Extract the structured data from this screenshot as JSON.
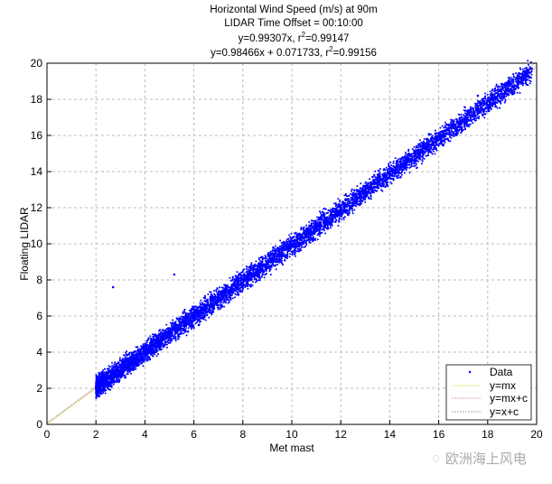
{
  "chart_data": {
    "type": "scatter",
    "title_lines": [
      "Horizontal Wind Speed (m/s) at 90m",
      "LIDAR Time Offset = 00:10:00",
      "y=0.99307x, r",
      "y=0.98466x + 0.071733, r"
    ],
    "title_r2": [
      "=0.99147",
      "=0.99156"
    ],
    "title_sup": "2",
    "xlabel": "Met mast",
    "ylabel": "Floating LIDAR",
    "xlim": [
      0,
      20
    ],
    "ylim": [
      0,
      20
    ],
    "xticks": [
      0,
      2,
      4,
      6,
      8,
      10,
      12,
      14,
      16,
      18,
      20
    ],
    "yticks": [
      0,
      2,
      4,
      6,
      8,
      10,
      12,
      14,
      16,
      18,
      20
    ],
    "grid": true,
    "legend_position": "bottom-right",
    "legend": [
      "Data",
      "y=mx",
      "y=mx+c",
      "y=x+c"
    ],
    "fits": [
      {
        "name": "y=mx",
        "m": 0.99307,
        "c": 0,
        "color": "#e8e070"
      },
      {
        "name": "y=mx+c",
        "m": 0.98466,
        "c": 0.071733,
        "color": "#f0a0a0"
      },
      {
        "name": "y=x+c",
        "m": 1,
        "c": 0.071733,
        "color": "#aaaaaa"
      }
    ],
    "data_color": "#0000ff",
    "series": [
      {
        "name": "Data",
        "x_range": [
          2,
          19.8
        ],
        "points": [
          [
            2.0,
            2.1
          ],
          [
            2.1,
            1.6
          ],
          [
            2.2,
            2.6
          ],
          [
            2.5,
            2.2
          ],
          [
            2.7,
            7.6
          ],
          [
            3,
            3.0
          ],
          [
            3.2,
            2.6
          ],
          [
            3.5,
            3.7
          ],
          [
            3.8,
            3.5
          ],
          [
            4,
            4.1
          ],
          [
            4.2,
            3.6
          ],
          [
            4.5,
            4.8
          ],
          [
            4.8,
            4.4
          ],
          [
            5,
            5.1
          ],
          [
            5.2,
            8.3
          ],
          [
            5.4,
            5.0
          ],
          [
            5.6,
            5.9
          ],
          [
            6,
            6.0
          ],
          [
            6.2,
            5.5
          ],
          [
            6.5,
            6.8
          ],
          [
            6.8,
            6.4
          ],
          [
            7,
            7.1
          ],
          [
            7.3,
            7.6
          ],
          [
            7.5,
            7.0
          ],
          [
            7.8,
            8.0
          ],
          [
            8,
            8.0
          ],
          [
            8.3,
            7.7
          ],
          [
            8.5,
            8.8
          ],
          [
            8.8,
            8.5
          ],
          [
            9,
            9.0
          ],
          [
            9.3,
            9.6
          ],
          [
            9.5,
            9.1
          ],
          [
            9.8,
            9.9
          ],
          [
            10,
            10.0
          ],
          [
            10.3,
            9.6
          ],
          [
            10.5,
            10.7
          ],
          [
            10.8,
            10.5
          ],
          [
            11,
            11.0
          ],
          [
            11.3,
            11.6
          ],
          [
            11.5,
            11.1
          ],
          [
            11.8,
            11.9
          ],
          [
            12,
            12.0
          ],
          [
            12.3,
            11.6
          ],
          [
            12.5,
            12.8
          ],
          [
            12.8,
            12.4
          ],
          [
            13,
            13.0
          ],
          [
            13.3,
            13.7
          ],
          [
            13.5,
            13.1
          ],
          [
            13.8,
            13.8
          ],
          [
            14,
            14.0
          ],
          [
            14.3,
            14.6
          ],
          [
            14.6,
            14.2
          ],
          [
            15,
            15.0
          ],
          [
            15.3,
            15.6
          ],
          [
            15.6,
            15.1
          ],
          [
            16,
            16.0
          ],
          [
            16.4,
            16.6
          ],
          [
            16.8,
            16.5
          ],
          [
            17.2,
            17.3
          ],
          [
            17.6,
            18.2
          ],
          [
            18,
            17.9
          ],
          [
            18.5,
            18.5
          ],
          [
            19.8,
            19.7
          ]
        ]
      }
    ]
  },
  "watermark": "欧洲海上风电"
}
